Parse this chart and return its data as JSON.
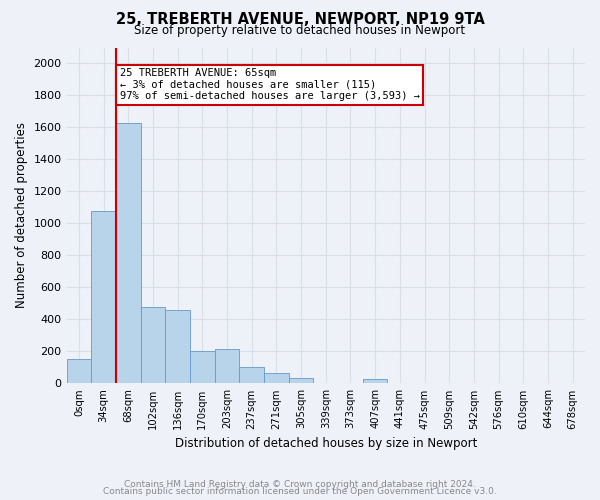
{
  "title1": "25, TREBERTH AVENUE, NEWPORT, NP19 9TA",
  "title2": "Size of property relative to detached houses in Newport",
  "xlabel": "Distribution of detached houses by size in Newport",
  "ylabel": "Number of detached properties",
  "footnote1": "Contains HM Land Registry data © Crown copyright and database right 2024.",
  "footnote2": "Contains public sector information licensed under the Open Government Licence v3.0.",
  "annotation_line1": "25 TREBERTH AVENUE: 65sqm",
  "annotation_line2": "← 3% of detached houses are smaller (115)",
  "annotation_line3": "97% of semi-detached houses are larger (3,593) →",
  "bar_color": "#b8d4ea",
  "bar_edge_color": "#6699cc",
  "marker_line_color": "#cc0000",
  "categories": [
    "0sqm",
    "34sqm",
    "68sqm",
    "102sqm",
    "136sqm",
    "170sqm",
    "203sqm",
    "237sqm",
    "271sqm",
    "305sqm",
    "339sqm",
    "373sqm",
    "407sqm",
    "441sqm",
    "475sqm",
    "509sqm",
    "542sqm",
    "576sqm",
    "610sqm",
    "644sqm",
    "678sqm"
  ],
  "values": [
    150,
    1075,
    1625,
    475,
    460,
    200,
    215,
    100,
    65,
    35,
    5,
    5,
    30,
    0,
    0,
    0,
    0,
    0,
    0,
    0,
    0
  ],
  "ylim": [
    0,
    2100
  ],
  "yticks": [
    0,
    200,
    400,
    600,
    800,
    1000,
    1200,
    1400,
    1600,
    1800,
    2000
  ],
  "marker_bar_index": 2,
  "background_color": "#eef2f8",
  "grid_color": "#d8dfe8"
}
